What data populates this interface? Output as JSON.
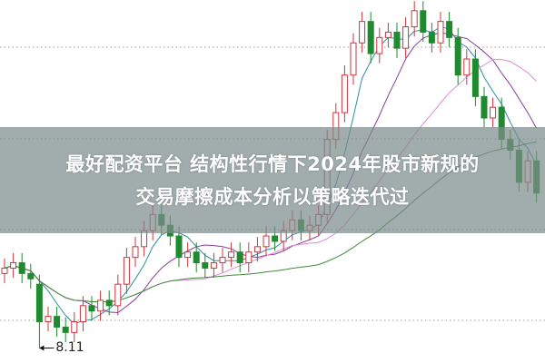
{
  "title": {
    "line1": "最好配资平台 结构性行情下2024年股市新规的",
    "line2": "交易摩擦成本分析以策略迭代过"
  },
  "chart_data": {
    "type": "candlestick",
    "ylim": [
      8.0,
      14.6
    ],
    "grid": true,
    "annotation": {
      "text": "8.11",
      "index": 4
    },
    "open": [
      9.5,
      9.6,
      9.7,
      9.5,
      9.3,
      8.6,
      8.7,
      8.5,
      8.4,
      8.6,
      8.9,
      8.8,
      9.0,
      8.9,
      9.3,
      9.8,
      10.0,
      10.3,
      10.6,
      10.4,
      10.2,
      9.8,
      9.9,
      9.7,
      9.6,
      9.7,
      9.8,
      9.9,
      9.7,
      9.9,
      10.0,
      10.2,
      10.1,
      10.3,
      10.5,
      10.3,
      10.4,
      10.6,
      12.0,
      12.5,
      13.2,
      13.8,
      14.2,
      13.6,
      13.9,
      14.0,
      13.7,
      14.1,
      14.4,
      14.0,
      13.8,
      14.2,
      13.9,
      13.2,
      13.5,
      12.8,
      12.4,
      12.6,
      12.0,
      11.8,
      11.2,
      11.6
    ],
    "close": [
      9.6,
      9.7,
      9.5,
      9.4,
      8.6,
      8.7,
      8.5,
      8.4,
      8.6,
      8.9,
      8.8,
      9.0,
      8.9,
      9.3,
      9.8,
      10.0,
      10.3,
      10.6,
      10.4,
      10.2,
      9.8,
      9.9,
      9.7,
      9.6,
      9.7,
      9.8,
      9.9,
      9.7,
      9.9,
      10.0,
      10.2,
      10.1,
      10.3,
      10.5,
      10.3,
      10.4,
      10.6,
      12.0,
      12.5,
      13.2,
      13.8,
      14.2,
      13.6,
      13.9,
      14.0,
      13.7,
      14.1,
      14.4,
      14.0,
      13.8,
      14.2,
      13.9,
      13.2,
      13.5,
      12.8,
      12.4,
      12.6,
      12.0,
      11.8,
      11.2,
      11.6,
      11.0
    ],
    "colors": {
      "up": "#d0353b",
      "down": "#1f8a2e",
      "ma": [
        "#2b8fa3",
        "#8a3f9c",
        "#e08bd8",
        "#3d8a3a"
      ],
      "grid": "#999999"
    }
  }
}
